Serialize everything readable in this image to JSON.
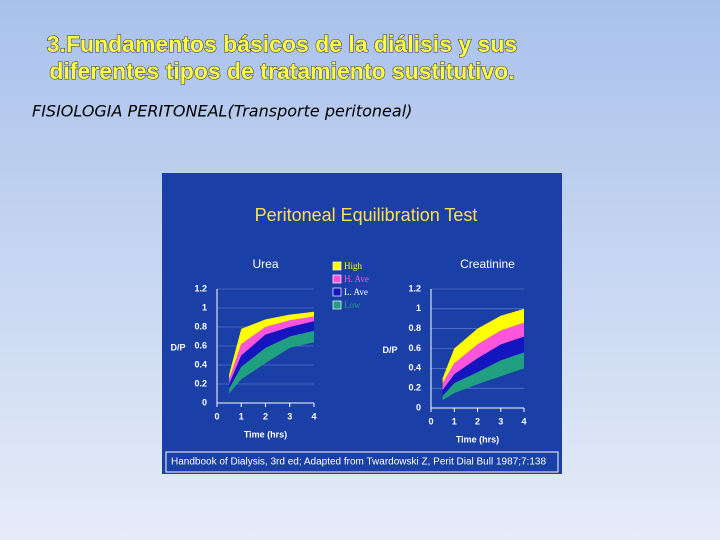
{
  "slide": {
    "title_lines": [
      "3.Fundamentos básicos de la diálisis y sus",
      "diferentes tipos de tratamiento sustitutivo."
    ],
    "subtitle": "FISIOLOGIA PERITONEAL(Transporte peritoneal)"
  },
  "figure": {
    "title": "Peritoneal Equilibration Test",
    "footnote": "Handbook of Dialysis, 3rd ed; Adapted from Twardowski Z, Perit Dial Bull 1987;7:138"
  },
  "chart_data": [
    {
      "type": "band",
      "title": "Urea",
      "y_label": "D/P",
      "x_label": "Time (hrs)",
      "x": [
        0.5,
        1,
        2,
        3,
        4
      ],
      "xlim": [
        0,
        4
      ],
      "xticks": [
        0,
        1,
        2,
        3,
        4
      ],
      "ylim": [
        0,
        1.2
      ],
      "yticks": [
        0,
        0.2,
        0.4,
        0.6,
        0.8,
        1,
        1.2
      ],
      "series": [
        {
          "name": "High",
          "color": "#ffff00",
          "upper": [
            0.3,
            0.78,
            0.88,
            0.93,
            0.96
          ],
          "lower": [
            0.25,
            0.62,
            0.8,
            0.87,
            0.91
          ]
        },
        {
          "name": "H. Ave",
          "color": "#ff55dd",
          "upper": [
            0.25,
            0.62,
            0.8,
            0.87,
            0.91
          ],
          "lower": [
            0.2,
            0.5,
            0.72,
            0.8,
            0.86
          ]
        },
        {
          "name": "L. Ave",
          "color": "#1515c0",
          "upper": [
            0.2,
            0.5,
            0.72,
            0.8,
            0.86
          ],
          "lower": [
            0.15,
            0.38,
            0.58,
            0.7,
            0.76
          ]
        },
        {
          "name": "Low",
          "color": "#20a080",
          "upper": [
            0.15,
            0.38,
            0.58,
            0.7,
            0.76
          ],
          "lower": [
            0.1,
            0.25,
            0.42,
            0.58,
            0.64
          ]
        }
      ]
    },
    {
      "type": "band",
      "title": "Creatinine",
      "y_label": "D/P",
      "x_label": "Time (hrs)",
      "x": [
        0.5,
        1,
        2,
        3,
        4
      ],
      "xlim": [
        0,
        4
      ],
      "xticks": [
        0,
        1,
        2,
        3,
        4
      ],
      "ylim": [
        0,
        1.2
      ],
      "yticks": [
        0,
        0.2,
        0.4,
        0.6,
        0.8,
        1,
        1.2
      ],
      "series": [
        {
          "color": "#ffff00",
          "upper": [
            0.3,
            0.6,
            0.8,
            0.93,
            1.0
          ],
          "lower": [
            0.25,
            0.45,
            0.64,
            0.78,
            0.86
          ]
        },
        {
          "color": "#ff55dd",
          "upper": [
            0.25,
            0.45,
            0.64,
            0.78,
            0.86
          ],
          "lower": [
            0.18,
            0.34,
            0.5,
            0.64,
            0.72
          ]
        },
        {
          "color": "#1515c0",
          "upper": [
            0.18,
            0.34,
            0.5,
            0.64,
            0.72
          ],
          "lower": [
            0.12,
            0.25,
            0.36,
            0.48,
            0.56
          ]
        },
        {
          "color": "#20a080",
          "upper": [
            0.12,
            0.25,
            0.36,
            0.48,
            0.56
          ],
          "lower": [
            0.08,
            0.15,
            0.24,
            0.32,
            0.4
          ]
        }
      ]
    }
  ]
}
